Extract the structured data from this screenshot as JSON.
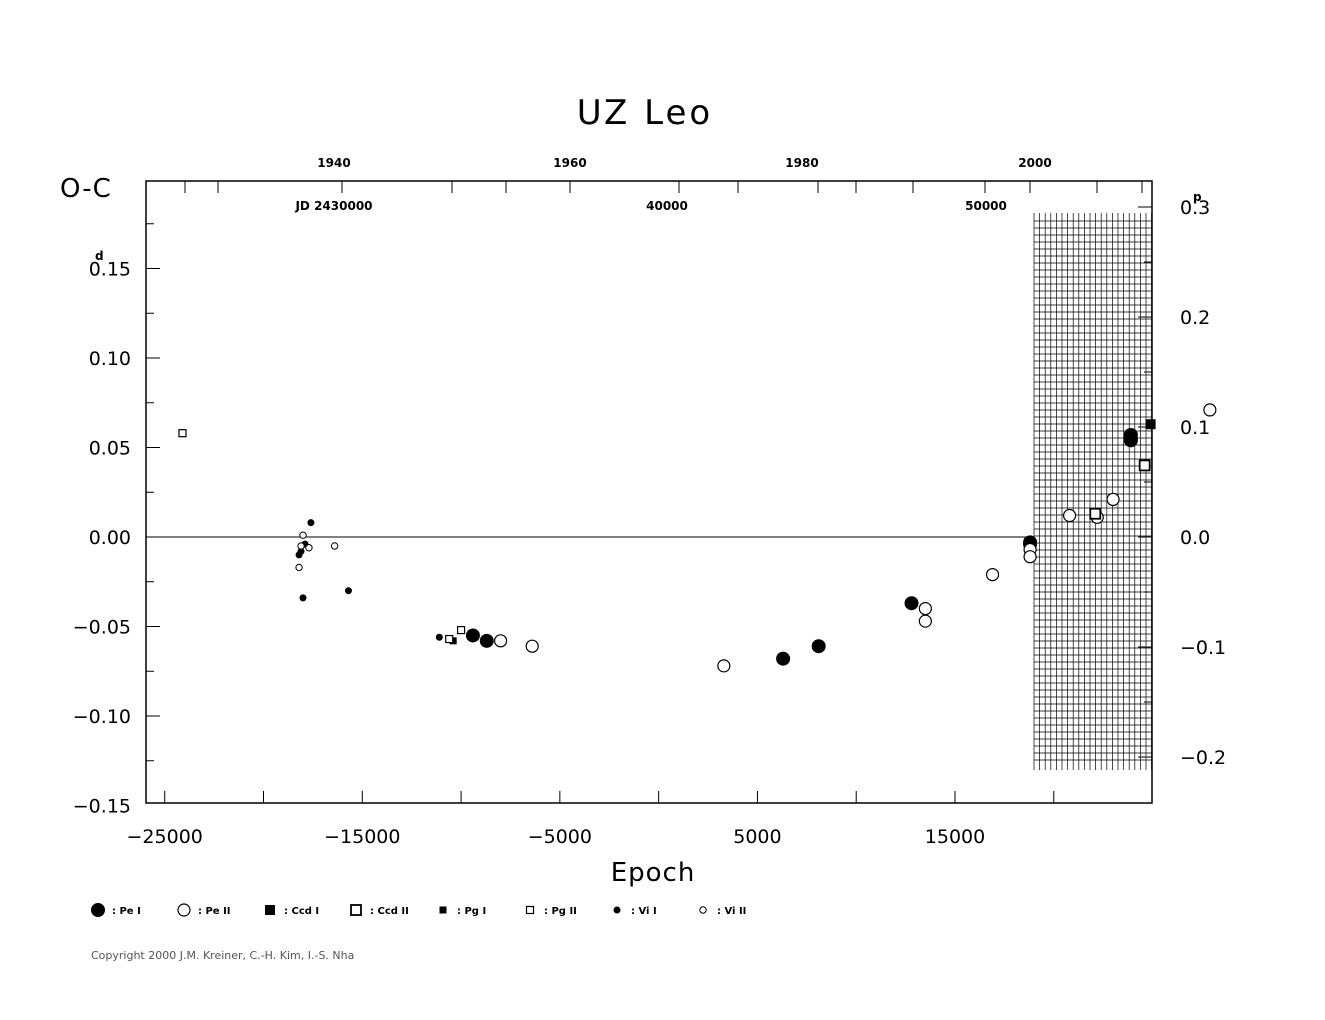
{
  "chart_data": {
    "type": "scatter",
    "title": "UZ Leo",
    "xlabel": "Epoch",
    "ylabel": "O-C",
    "y_unit": "d",
    "y2_unit": "p",
    "xlim": [
      -26000,
      25000
    ],
    "ylim": [
      -0.15,
      0.2
    ],
    "x_ticks": [
      -25000,
      -15000,
      -5000,
      5000,
      15000
    ],
    "x_tick_labels": [
      "−25000",
      "−15000",
      "−5000",
      "5000",
      "15000"
    ],
    "y_ticks": [
      0.15,
      0.1,
      0.05,
      0.0,
      -0.05,
      -0.1,
      -0.15
    ],
    "y_tick_labels": [
      "0.15",
      "0.10",
      "0.05",
      "0.00",
      "−0.05",
      "−0.10",
      "−0.15"
    ],
    "y2_ticks": [
      0.3,
      0.2,
      0.1,
      0.0,
      -0.1,
      -0.2
    ],
    "y2_tick_labels": [
      "0.3",
      "0.2",
      "0.1",
      "0.0",
      "−0.1",
      "−0.2"
    ],
    "top_years": [
      "1940",
      "1960",
      "1980",
      "2000"
    ],
    "top_jd_labels": [
      "JD 2430000",
      "40000",
      "50000"
    ],
    "grid": false,
    "legend_position": "bottom",
    "series": [
      {
        "name": ": Pe I",
        "marker": "filled-circle-large",
        "points": [
          [
            -9400,
            -0.055
          ],
          [
            -8700,
            -0.058
          ],
          [
            6300,
            -0.068
          ],
          [
            8100,
            -0.061
          ],
          [
            12800,
            -0.037
          ],
          [
            18800,
            -0.003
          ],
          [
            18800,
            -0.004
          ],
          [
            23900,
            0.057
          ],
          [
            23900,
            0.055
          ],
          [
            23900,
            0.054
          ]
        ]
      },
      {
        "name": ": Pe II",
        "marker": "open-circle-large",
        "points": [
          [
            -8000,
            -0.058
          ],
          [
            -6400,
            -0.061
          ],
          [
            3300,
            -0.072
          ],
          [
            13500,
            -0.04
          ],
          [
            13500,
            -0.047
          ],
          [
            16900,
            -0.021
          ],
          [
            18800,
            -0.007
          ],
          [
            18800,
            -0.011
          ],
          [
            20800,
            0.012
          ],
          [
            22200,
            0.011
          ],
          [
            23000,
            0.021
          ],
          [
            27900,
            0.071
          ]
        ]
      },
      {
        "name": ": Ccd I",
        "marker": "filled-square-large",
        "points": [
          [
            24900,
            0.063
          ]
        ]
      },
      {
        "name": ": Ccd II",
        "marker": "open-square-large",
        "points": [
          [
            24600,
            0.04
          ],
          [
            22100,
            0.013
          ]
        ]
      },
      {
        "name": ": Pg I",
        "marker": "filled-square-small",
        "points": [
          [
            -10400,
            -0.058
          ]
        ]
      },
      {
        "name": ": Pg II",
        "marker": "open-square-small",
        "points": [
          [
            -24100,
            0.058
          ],
          [
            -10000,
            -0.052
          ],
          [
            -10600,
            -0.057
          ]
        ]
      },
      {
        "name": ": Vi I",
        "marker": "filled-circle-small",
        "points": [
          [
            -18100,
            -0.008
          ],
          [
            -18200,
            -0.01
          ],
          [
            -17900,
            -0.004
          ],
          [
            -17600,
            0.008
          ],
          [
            -18000,
            -0.034
          ],
          [
            -15700,
            -0.03
          ],
          [
            -11100,
            -0.056
          ]
        ]
      },
      {
        "name": ": Vi II",
        "marker": "open-circle-small",
        "points": [
          [
            -18000,
            0.001
          ],
          [
            -18100,
            -0.005
          ],
          [
            -17700,
            -0.006
          ],
          [
            -16400,
            -0.005
          ],
          [
            -18200,
            -0.017
          ]
        ]
      }
    ],
    "legend": [
      {
        "label": ": Pe I",
        "marker": "filled-circle-large"
      },
      {
        "label": ": Pe II",
        "marker": "open-circle-large"
      },
      {
        "label": ": Ccd I",
        "marker": "filled-square-large"
      },
      {
        "label": ": Ccd II",
        "marker": "open-square-large"
      },
      {
        "label": ": Pg I",
        "marker": "filled-square-small"
      },
      {
        "label": ": Pg II",
        "marker": "open-square-small"
      },
      {
        "label": ": Vi I",
        "marker": "filled-circle-small"
      },
      {
        "label": ": Vi II",
        "marker": "open-circle-small"
      }
    ]
  },
  "footer": {
    "copyright": "Copyright 2000 J.M. Kreiner, C.-H. Kim, I.-S. Nha"
  }
}
